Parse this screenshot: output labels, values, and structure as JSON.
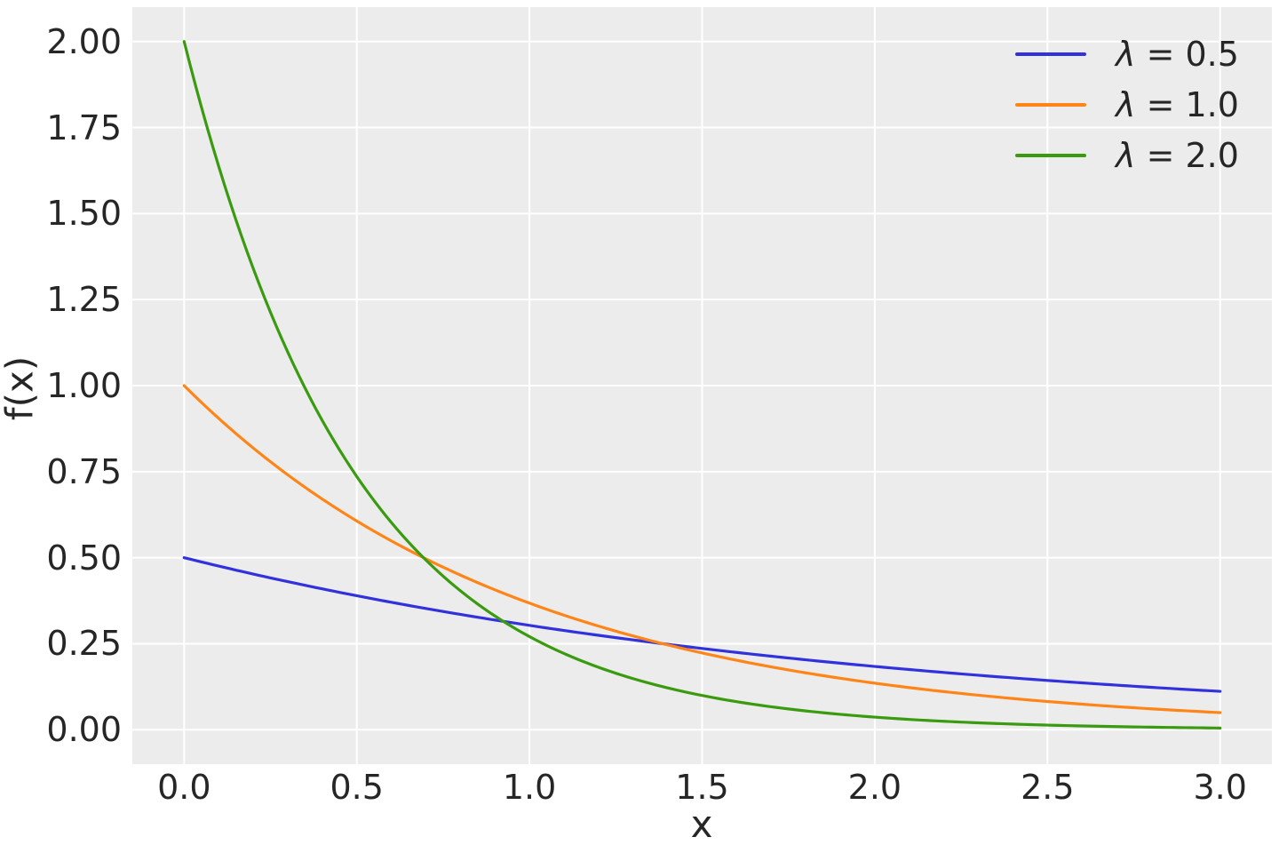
{
  "colors": {
    "figure_bg": "#ffffff",
    "plot_bg": "#ececec",
    "grid": "#ffffff",
    "text": "#262626"
  },
  "chart_data": {
    "type": "line",
    "title": "",
    "xlabel": "x",
    "ylabel": "f(x)",
    "grid": true,
    "legend_position": "upper right",
    "xlim": [
      -0.15,
      3.15
    ],
    "ylim": [
      -0.1,
      2.1
    ],
    "x_ticks": [
      0.0,
      0.5,
      1.0,
      1.5,
      2.0,
      2.5,
      3.0
    ],
    "x_tick_labels": [
      "0.0",
      "0.5",
      "1.0",
      "1.5",
      "2.0",
      "2.5",
      "3.0"
    ],
    "y_ticks": [
      0.0,
      0.25,
      0.5,
      0.75,
      1.0,
      1.25,
      1.5,
      1.75,
      2.0
    ],
    "y_tick_labels": [
      "0.00",
      "0.25",
      "0.50",
      "0.75",
      "1.00",
      "1.25",
      "1.50",
      "1.75",
      "2.00"
    ],
    "x_sample_range": [
      0,
      3
    ],
    "x_samples": [
      0,
      0.25,
      0.5,
      0.75,
      1.0,
      1.25,
      1.5,
      1.75,
      2.0,
      2.25,
      2.5,
      2.75,
      3.0
    ],
    "series": [
      {
        "name": "λ = 0.5",
        "lambda": 0.5,
        "color": "#3232dd",
        "values": [
          0.5,
          0.4412,
          0.3894,
          0.3436,
          0.3033,
          0.2676,
          0.2362,
          0.2084,
          0.1839,
          0.1624,
          0.1433,
          0.1264,
          0.1116
        ]
      },
      {
        "name": "λ = 1.0",
        "lambda": 1.0,
        "color": "#ff8518",
        "values": [
          1.0,
          0.7788,
          0.6065,
          0.4724,
          0.3679,
          0.2865,
          0.2231,
          0.1738,
          0.1353,
          0.1054,
          0.0821,
          0.0639,
          0.0498
        ]
      },
      {
        "name": "λ = 2.0",
        "lambda": 2.0,
        "color": "#3a9b10",
        "values": [
          2.0,
          1.2131,
          0.7358,
          0.4463,
          0.2707,
          0.1642,
          0.0996,
          0.0604,
          0.0366,
          0.0222,
          0.0135,
          0.0082,
          0.005
        ]
      }
    ]
  }
}
